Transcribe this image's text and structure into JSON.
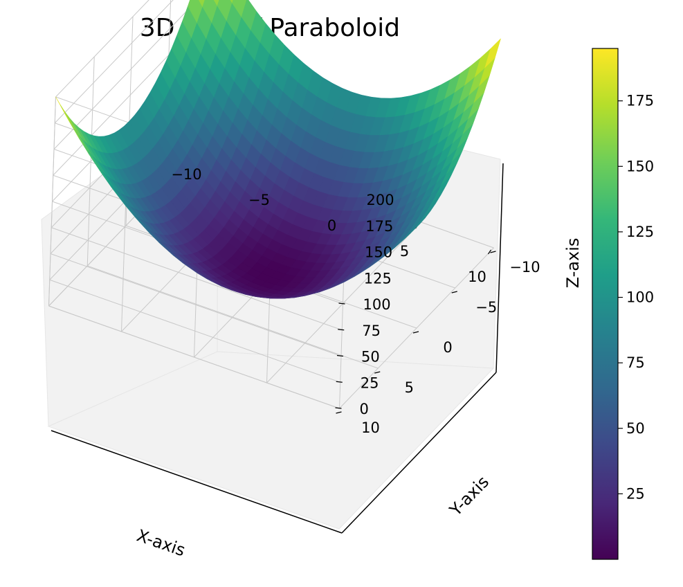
{
  "chart_data": {
    "type": "surface3d",
    "title": "3D Plot of Paraboloid",
    "xlabel": "X-axis",
    "ylabel": "Y-axis",
    "zlabel": "Z-axis",
    "function": "z = x^2 + y^2",
    "x_range": [
      -10,
      10
    ],
    "y_range": [
      -10,
      10
    ],
    "z_range": [
      0,
      200
    ],
    "colormap": "viridis",
    "colormap_stops": [
      "#440154",
      "#482878",
      "#3e4989",
      "#31688e",
      "#26828e",
      "#1f9e89",
      "#35b779",
      "#6ece58",
      "#b5de2b",
      "#fde725"
    ],
    "surface_z_min": 0,
    "surface_z_max": 195,
    "x_ticks": [
      -10,
      -5,
      0,
      5,
      10
    ],
    "x_tick_labels": [
      "−10",
      "−5",
      "0",
      "5",
      "10"
    ],
    "y_ticks": [
      -10,
      -5,
      0,
      5,
      10
    ],
    "y_tick_labels": [
      "−10",
      "−5",
      "0",
      "5",
      "10"
    ],
    "z_ticks": [
      0,
      25,
      50,
      75,
      100,
      125,
      150,
      175,
      200
    ],
    "z_tick_labels": [
      "0",
      "25",
      "50",
      "75",
      "100",
      "125",
      "150",
      "175",
      "200"
    ],
    "colorbar_ticks": [
      25,
      50,
      75,
      100,
      125,
      150,
      175
    ],
    "colorbar_tick_labels": [
      "25",
      "50",
      "75",
      "100",
      "125",
      "150",
      "175"
    ],
    "grid": true
  }
}
